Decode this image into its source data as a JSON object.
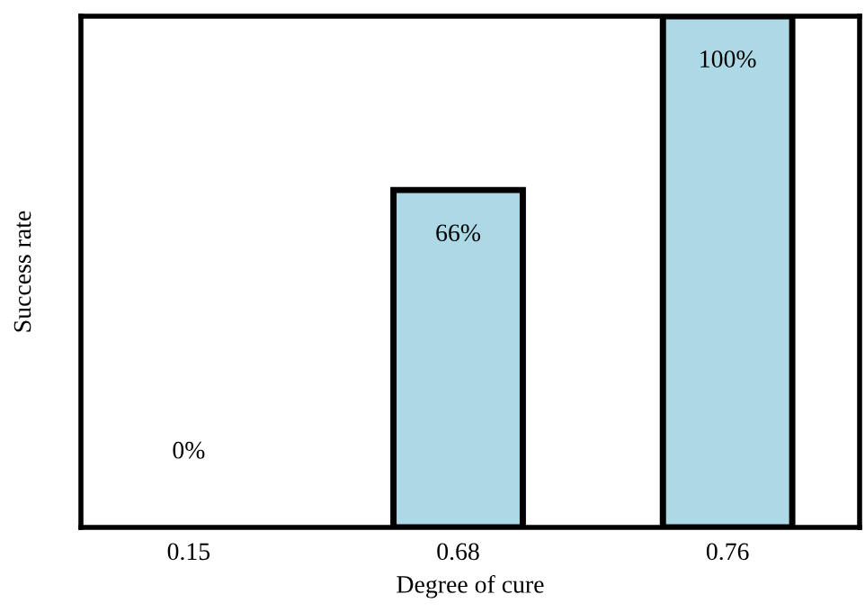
{
  "chart_data": {
    "type": "bar",
    "xlabel": "Degree of cure",
    "ylabel": "Success rate",
    "categories": [
      "0.15",
      "0.68",
      "0.76"
    ],
    "values": [
      0,
      66,
      100
    ],
    "value_labels": [
      "0%",
      "66%",
      "100%"
    ],
    "color": "#add8e6",
    "ylim": [
      0,
      100
    ],
    "tick_labels": "x",
    "grid": false,
    "legend": false
  }
}
